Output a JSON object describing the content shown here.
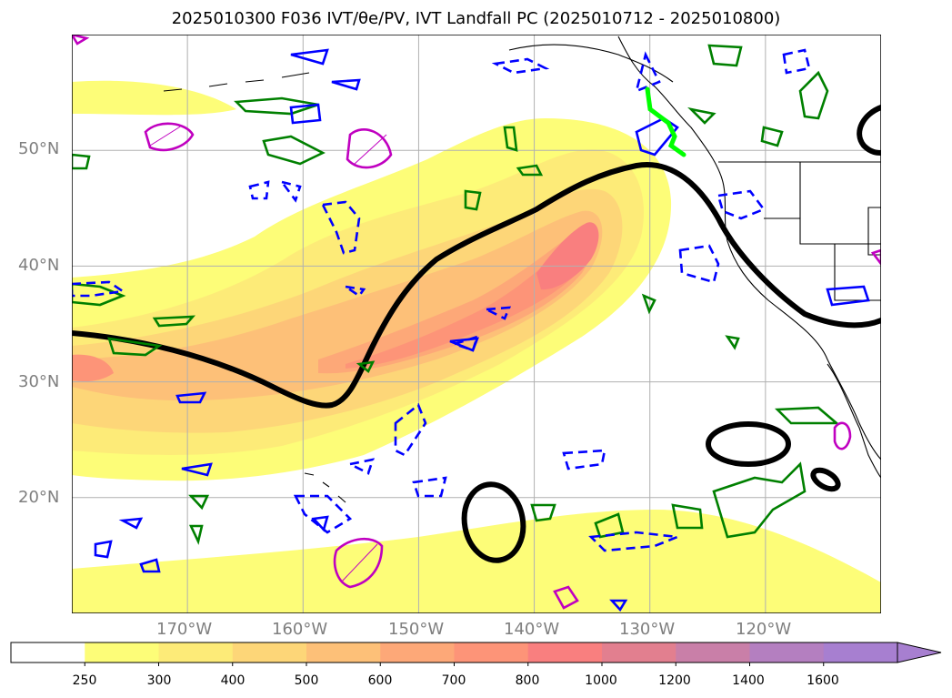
{
  "title": "2025010300 F036 IVT/θe/PV, IVT Landfall PC (2025010712 - 2025010800)",
  "lat_labels": [
    "50°N",
    "40°N",
    "30°N",
    "20°N"
  ],
  "lon_labels": [
    "170°W",
    "160°W",
    "150°W",
    "140°W",
    "130°W",
    "120°W"
  ],
  "colorbar": {
    "ticks": [
      "250",
      "300",
      "400",
      "500",
      "600",
      "700",
      "800",
      "1000",
      "1200",
      "1400",
      "1600"
    ],
    "colors": [
      "#ffffff",
      "#fdfd78",
      "#fdeb78",
      "#fdd678",
      "#fdc078",
      "#fda878",
      "#fd9478",
      "#f97f7f",
      "#e27f8f",
      "#c97fa8",
      "#b47fc0",
      "#a77fd0"
    ],
    "extend": "max"
  },
  "map": {
    "extent": {
      "lon": [
        -180,
        -110
      ],
      "lat": [
        10,
        60
      ]
    },
    "gridlines": {
      "lon": [
        -170,
        -160,
        -150,
        -140,
        -130,
        -120
      ],
      "lat": [
        20,
        30,
        40,
        50
      ]
    },
    "contour_colors": {
      "theta_e": "#000000",
      "pv_positive": "#008000",
      "pv_negative": "#0000ff",
      "magenta": "#c000c0",
      "landfall": "#00ff00"
    }
  }
}
